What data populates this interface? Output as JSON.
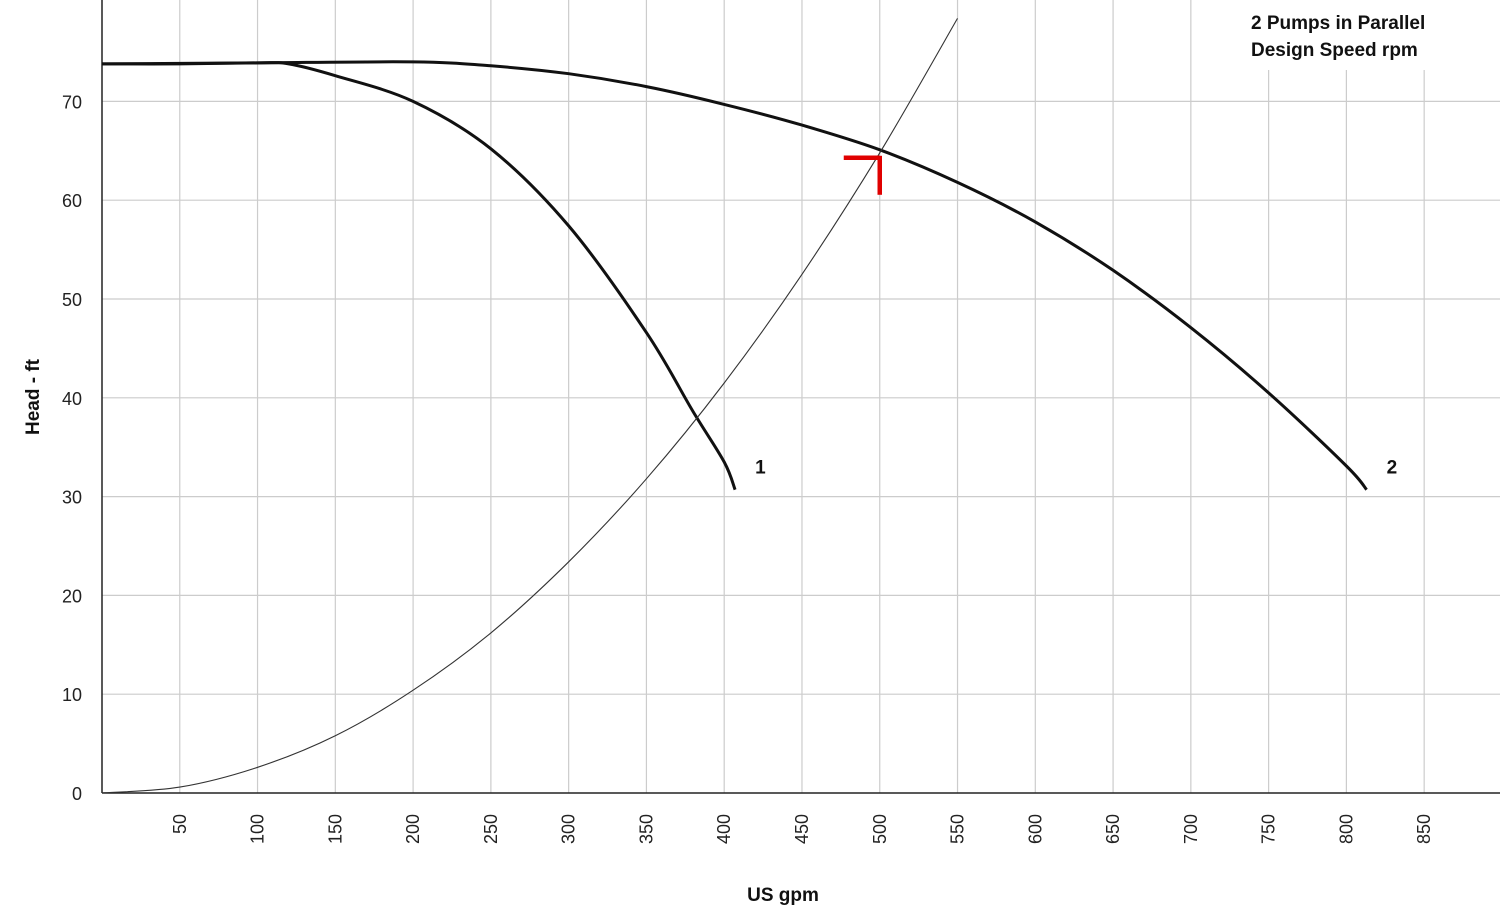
{
  "chart_data": {
    "type": "line",
    "title_lines": [
      "2 Pumps in Parallel",
      "Design Speed rpm"
    ],
    "xlabel": "US gpm",
    "ylabel": "Head - ft",
    "xlim": [
      0,
      900
    ],
    "ylim": [
      0,
      80
    ],
    "x_ticks": [
      50,
      100,
      150,
      200,
      250,
      300,
      350,
      400,
      450,
      500,
      550,
      600,
      650,
      700,
      750,
      800,
      850
    ],
    "y_ticks": [
      0,
      10,
      20,
      30,
      40,
      50,
      60,
      70
    ],
    "grid": true,
    "colors": {
      "curve": "#111111",
      "system": "#333333",
      "marker": "#e00000",
      "grid": "#cccccc"
    },
    "series": [
      {
        "name": "1",
        "x": [
          0,
          50,
          100,
          120,
          150,
          200,
          250,
          300,
          350,
          380,
          400,
          407
        ],
        "y": [
          73.8,
          73.8,
          73.9,
          73.8,
          72.6,
          70,
          65.2,
          57.4,
          46.6,
          38.6,
          33.5,
          30.7
        ]
      },
      {
        "name": "2",
        "x": [
          0,
          100,
          200,
          250,
          300,
          350,
          400,
          450,
          500,
          550,
          600,
          650,
          700,
          750,
          800,
          813
        ],
        "y": [
          73.8,
          73.9,
          74,
          73.6,
          72.8,
          71.5,
          69.7,
          67.6,
          65.1,
          61.8,
          57.8,
          52.9,
          47.1,
          40.5,
          33.1,
          30.7
        ]
      },
      {
        "x": [
          0,
          50,
          100,
          150,
          200,
          250,
          300,
          350,
          400,
          450,
          500,
          550
        ],
        "y": [
          0,
          0.6,
          2.6,
          5.8,
          10.4,
          16.2,
          23.4,
          31.8,
          41.5,
          52.5,
          64.8,
          78.4
        ]
      }
    ],
    "operating_point": {
      "x": 500,
      "y": 65
    }
  }
}
